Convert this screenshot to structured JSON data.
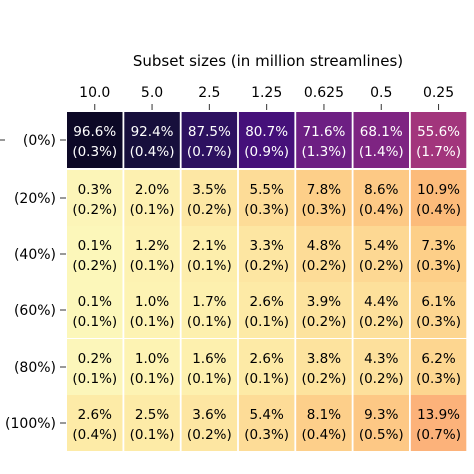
{
  "chart_data": {
    "type": "heatmap",
    "title": "",
    "xlabel": "Subset sizes (in million streamlines)",
    "ylabel": "",
    "x_ticks": [
      "10.0",
      "5.0",
      "2.5",
      "1.25",
      "0.625",
      "0.5",
      "0.25"
    ],
    "y_ticks": [
      "(0%)",
      "(20%)",
      "(40%)",
      "(60%)",
      "(80%)",
      "(100%)"
    ],
    "x_axis_position": "top",
    "colormap": "magma",
    "colormap_reversed": true,
    "values": [
      [
        96.6,
        92.4,
        87.5,
        80.7,
        71.6,
        68.1,
        55.6
      ],
      [
        0.3,
        2.0,
        3.5,
        5.5,
        7.8,
        8.6,
        10.9
      ],
      [
        0.1,
        1.2,
        2.1,
        3.3,
        4.8,
        5.4,
        7.3
      ],
      [
        0.1,
        1.0,
        1.7,
        2.6,
        3.9,
        4.4,
        6.1
      ],
      [
        0.2,
        1.0,
        1.6,
        2.6,
        3.8,
        4.3,
        6.2
      ],
      [
        2.6,
        2.5,
        3.6,
        5.4,
        8.1,
        9.3,
        13.9
      ]
    ],
    "value_labels": [
      [
        "96.6%",
        "92.4%",
        "87.5%",
        "80.7%",
        "71.6%",
        "68.1%",
        "55.6%"
      ],
      [
        "0.3%",
        "2.0%",
        "3.5%",
        "5.5%",
        "7.8%",
        "8.6%",
        "10.9%"
      ],
      [
        "0.1%",
        "1.2%",
        "2.1%",
        "3.3%",
        "4.8%",
        "5.4%",
        "7.3%"
      ],
      [
        "0.1%",
        "1.0%",
        "1.7%",
        "2.6%",
        "3.9%",
        "4.4%",
        "6.1%"
      ],
      [
        "0.2%",
        "1.0%",
        "1.6%",
        "2.6%",
        "3.8%",
        "4.3%",
        "6.2%"
      ],
      [
        "2.6%",
        "2.5%",
        "3.6%",
        "5.4%",
        "8.1%",
        "9.3%",
        "13.9%"
      ]
    ],
    "std_labels": [
      [
        "(0.3%)",
        "(0.4%)",
        "(0.7%)",
        "(0.9%)",
        "(1.3%)",
        "(1.4%)",
        "(1.7%)"
      ],
      [
        "(0.2%)",
        "(0.1%)",
        "(0.2%)",
        "(0.3%)",
        "(0.3%)",
        "(0.4%)",
        "(0.4%)"
      ],
      [
        "(0.2%)",
        "(0.1%)",
        "(0.1%)",
        "(0.2%)",
        "(0.2%)",
        "(0.2%)",
        "(0.3%)"
      ],
      [
        "(0.1%)",
        "(0.1%)",
        "(0.1%)",
        "(0.1%)",
        "(0.2%)",
        "(0.2%)",
        "(0.3%)"
      ],
      [
        "(0.1%)",
        "(0.1%)",
        "(0.1%)",
        "(0.1%)",
        "(0.2%)",
        "(0.2%)",
        "(0.3%)"
      ],
      [
        "(0.4%)",
        "(0.1%)",
        "(0.2%)",
        "(0.3%)",
        "(0.4%)",
        "(0.5%)",
        "(0.7%)"
      ]
    ],
    "colors": [
      [
        "#0c0826",
        "#170f3c",
        "#2d1160",
        "#45107a",
        "#6d1f83",
        "#7e2482",
        "#a2357c"
      ],
      [
        "#fcf5b8",
        "#fdf0b0",
        "#fde7a4",
        "#fddc97",
        "#fdcf89",
        "#fdc985",
        "#fcbb7a"
      ],
      [
        "#fcf7ba",
        "#fdf2b2",
        "#fdeeac",
        "#fde6a2",
        "#fddc97",
        "#fdd893",
        "#fdcf88"
      ],
      [
        "#fcf7ba",
        "#fdf3b3",
        "#fdf0ae",
        "#fdeaa6",
        "#fde39e",
        "#fde09b",
        "#fdd690"
      ],
      [
        "#fcf6ba",
        "#fdf3b3",
        "#fdf0ae",
        "#fdeaa6",
        "#fde39e",
        "#fde09c",
        "#fdd690"
      ],
      [
        "#fdeba7",
        "#fdeba7",
        "#fde6a2",
        "#fddc97",
        "#fdcf8a",
        "#fdc885",
        "#fcb27a"
      ]
    ],
    "text_colors": [
      "#ffffff",
      "#000000",
      "#000000",
      "#000000",
      "#000000",
      "#000000"
    ]
  }
}
